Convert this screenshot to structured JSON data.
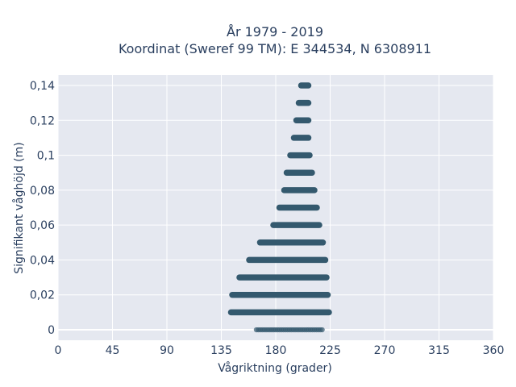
{
  "chart_data": {
    "type": "scatter",
    "title_line1": "År 1979 - 2019",
    "title_line2": "Koordinat (Sweref 99 TM): E 344534, N 6308911",
    "xlabel": "Vågriktning (grader)",
    "ylabel": "Signifikant våghöjd (m)",
    "xlim": [
      0,
      360
    ],
    "ylim": [
      -0.006,
      0.146
    ],
    "x_ticks": [
      0,
      45,
      90,
      135,
      180,
      225,
      270,
      315,
      360
    ],
    "x_tick_labels": [
      "0",
      "45",
      "90",
      "135",
      "180",
      "225",
      "270",
      "315",
      "360"
    ],
    "y_ticks": [
      0,
      0.02,
      0.04,
      0.06,
      0.08,
      0.1,
      0.12,
      0.14
    ],
    "y_tick_labels": [
      "0",
      "0,02",
      "0,04",
      "0,06",
      "0,08",
      "0,1",
      "0,12",
      "0,14"
    ],
    "grid": true,
    "marker_color": "#34596e",
    "plot_background": "#e5e8f0",
    "rows": [
      {
        "y": 0.0,
        "x_min": 164,
        "x_max": 219
      },
      {
        "y": 0.01,
        "x_min": 143,
        "x_max": 224
      },
      {
        "y": 0.02,
        "x_min": 144,
        "x_max": 223
      },
      {
        "y": 0.03,
        "x_min": 150,
        "x_max": 222
      },
      {
        "y": 0.04,
        "x_min": 158,
        "x_max": 221
      },
      {
        "y": 0.05,
        "x_min": 167,
        "x_max": 219
      },
      {
        "y": 0.06,
        "x_min": 178,
        "x_max": 216
      },
      {
        "y": 0.07,
        "x_min": 183,
        "x_max": 214
      },
      {
        "y": 0.08,
        "x_min": 187,
        "x_max": 212
      },
      {
        "y": 0.09,
        "x_min": 189,
        "x_max": 210
      },
      {
        "y": 0.1,
        "x_min": 192,
        "x_max": 208
      },
      {
        "y": 0.11,
        "x_min": 195,
        "x_max": 207
      },
      {
        "y": 0.12,
        "x_min": 197,
        "x_max": 207
      },
      {
        "y": 0.13,
        "x_min": 199,
        "x_max": 207
      },
      {
        "y": 0.14,
        "x_min": 201,
        "x_max": 207
      }
    ]
  }
}
